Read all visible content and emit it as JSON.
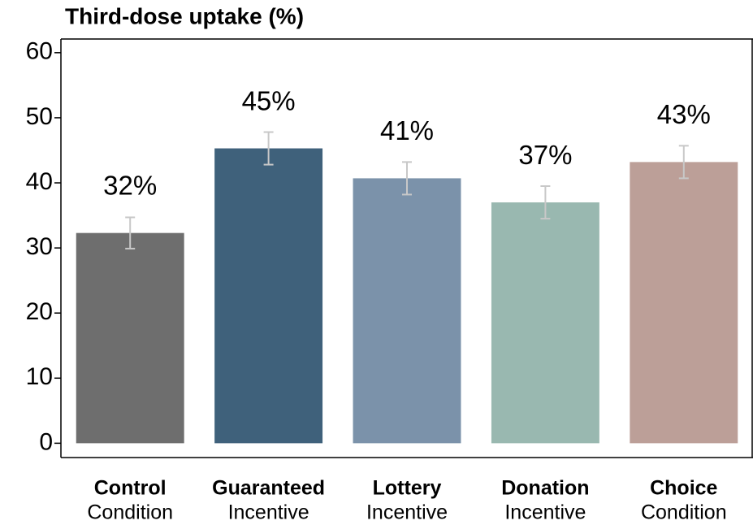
{
  "chart_data": {
    "type": "bar",
    "title": "Third-dose uptake (%)",
    "categories": [
      {
        "name": "Control",
        "sub": "Condition"
      },
      {
        "name": "Guaranteed",
        "sub": "Incentive"
      },
      {
        "name": "Lottery",
        "sub": "Incentive"
      },
      {
        "name": "Donation",
        "sub": "Incentive"
      },
      {
        "name": "Choice",
        "sub": "Condition"
      }
    ],
    "values": [
      32.3,
      45.3,
      40.7,
      37.0,
      43.2
    ],
    "value_labels": [
      "32%",
      "45%",
      "41%",
      "37%",
      "43%"
    ],
    "errors": [
      2.4,
      2.5,
      2.5,
      2.5,
      2.5
    ],
    "colors": [
      "#6e6e6e",
      "#3f617b",
      "#7b92aa",
      "#99b8b0",
      "#bc9f98"
    ],
    "error_color": "#c8c8c8",
    "ylim": [
      -2.2,
      62.1
    ],
    "yticks": [
      0,
      10,
      20,
      30,
      40,
      50,
      60
    ],
    "grid": false
  }
}
